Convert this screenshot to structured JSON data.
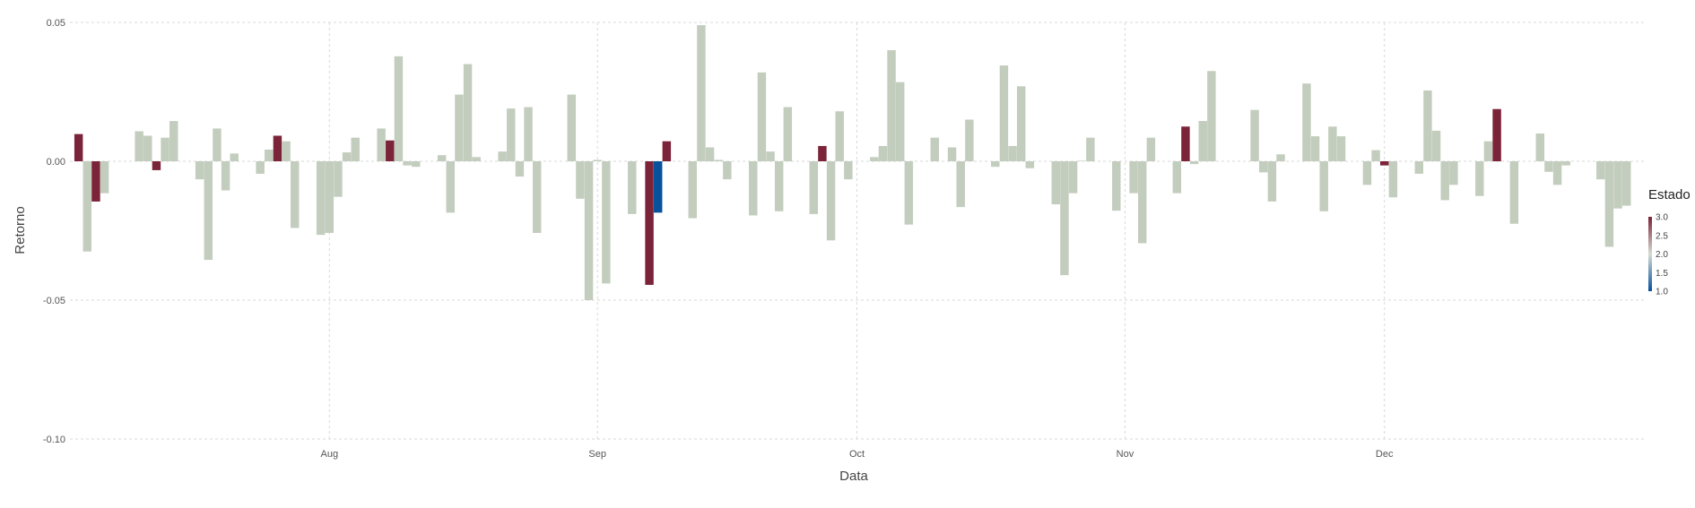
{
  "chart_data": {
    "type": "bar",
    "title": "",
    "xlabel": "Data",
    "ylabel": "Retorno",
    "ylim": [
      -0.1,
      0.05
    ],
    "x_start": "2023-07-02",
    "x_end": "2023-12-31",
    "x_ticks": [
      {
        "date": "2023-08-01",
        "label": "Aug"
      },
      {
        "date": "2023-09-01",
        "label": "Sep"
      },
      {
        "date": "2023-10-01",
        "label": "Oct"
      },
      {
        "date": "2023-11-01",
        "label": "Nov"
      },
      {
        "date": "2023-12-01",
        "label": "Dec"
      }
    ],
    "y_ticks": [
      {
        "value": 0.05,
        "label": "0.05"
      },
      {
        "value": 0.0,
        "label": "0.00"
      },
      {
        "value": -0.05,
        "label": "-0.05"
      },
      {
        "value": -0.1,
        "label": "-0.10"
      }
    ],
    "grid": true,
    "legend": {
      "title": "Estado",
      "position": "right",
      "min": 1.0,
      "max": 3.0,
      "ticks": [
        "1.0",
        "1.5",
        "2.0",
        "2.5",
        "3.0"
      ],
      "colors": {
        "low": "#08519c",
        "mid": "#d6dcd4",
        "high": "#7b2338"
      }
    },
    "series": [
      {
        "bars": [
          {
            "date": "2023-07-03",
            "value": 0.0098,
            "state": 3
          },
          {
            "date": "2023-07-04",
            "value": -0.0325,
            "state": 2
          },
          {
            "date": "2023-07-05",
            "value": -0.0145,
            "state": 3
          },
          {
            "date": "2023-07-06",
            "value": -0.0115,
            "state": 2
          },
          {
            "date": "2023-07-10",
            "value": 0.0108,
            "state": 2
          },
          {
            "date": "2023-07-11",
            "value": 0.0092,
            "state": 2
          },
          {
            "date": "2023-07-12",
            "value": -0.0032,
            "state": 3
          },
          {
            "date": "2023-07-13",
            "value": 0.0085,
            "state": 2
          },
          {
            "date": "2023-07-14",
            "value": 0.0145,
            "state": 2
          },
          {
            "date": "2023-07-17",
            "value": -0.0065,
            "state": 2
          },
          {
            "date": "2023-07-18",
            "value": -0.0355,
            "state": 2
          },
          {
            "date": "2023-07-19",
            "value": 0.0118,
            "state": 2
          },
          {
            "date": "2023-07-20",
            "value": -0.0105,
            "state": 2
          },
          {
            "date": "2023-07-21",
            "value": 0.0028,
            "state": 2
          },
          {
            "date": "2023-07-24",
            "value": -0.0045,
            "state": 2
          },
          {
            "date": "2023-07-25",
            "value": 0.0042,
            "state": 2
          },
          {
            "date": "2023-07-26",
            "value": 0.0092,
            "state": 3
          },
          {
            "date": "2023-07-27",
            "value": 0.0072,
            "state": 2
          },
          {
            "date": "2023-07-28",
            "value": -0.024,
            "state": 2
          },
          {
            "date": "2023-07-31",
            "value": -0.0265,
            "state": 2
          },
          {
            "date": "2023-08-01",
            "value": -0.0258,
            "state": 2
          },
          {
            "date": "2023-08-02",
            "value": -0.0128,
            "state": 2
          },
          {
            "date": "2023-08-03",
            "value": 0.0032,
            "state": 2
          },
          {
            "date": "2023-08-04",
            "value": 0.0085,
            "state": 2
          },
          {
            "date": "2023-08-07",
            "value": 0.0118,
            "state": 2
          },
          {
            "date": "2023-08-08",
            "value": 0.0075,
            "state": 3
          },
          {
            "date": "2023-08-09",
            "value": 0.0378,
            "state": 2
          },
          {
            "date": "2023-08-10",
            "value": -0.0015,
            "state": 2
          },
          {
            "date": "2023-08-11",
            "value": -0.002,
            "state": 2
          },
          {
            "date": "2023-08-14",
            "value": 0.0022,
            "state": 2
          },
          {
            "date": "2023-08-15",
            "value": -0.0185,
            "state": 2
          },
          {
            "date": "2023-08-16",
            "value": 0.024,
            "state": 2
          },
          {
            "date": "2023-08-17",
            "value": 0.035,
            "state": 2
          },
          {
            "date": "2023-08-18",
            "value": 0.0015,
            "state": 2
          },
          {
            "date": "2023-08-21",
            "value": 0.0035,
            "state": 2
          },
          {
            "date": "2023-08-22",
            "value": 0.019,
            "state": 2
          },
          {
            "date": "2023-08-23",
            "value": -0.0055,
            "state": 2
          },
          {
            "date": "2023-08-24",
            "value": 0.0195,
            "state": 2
          },
          {
            "date": "2023-08-25",
            "value": -0.0258,
            "state": 2
          },
          {
            "date": "2023-08-29",
            "value": 0.024,
            "state": 2
          },
          {
            "date": "2023-08-30",
            "value": -0.0135,
            "state": 2
          },
          {
            "date": "2023-08-31",
            "value": -0.05,
            "state": 2
          },
          {
            "date": "2023-09-01",
            "value": 0.0005,
            "state": 2
          },
          {
            "date": "2023-09-02",
            "value": -0.044,
            "state": 2
          },
          {
            "date": "2023-09-05",
            "value": -0.019,
            "state": 2
          },
          {
            "date": "2023-09-07",
            "value": -0.0445,
            "state": 3
          },
          {
            "date": "2023-09-08",
            "value": -0.0185,
            "state": 1
          },
          {
            "date": "2023-09-09",
            "value": 0.0072,
            "state": 3
          },
          {
            "date": "2023-09-12",
            "value": -0.0205,
            "state": 2
          },
          {
            "date": "2023-09-13",
            "value": 0.049,
            "state": 2
          },
          {
            "date": "2023-09-14",
            "value": 0.005,
            "state": 2
          },
          {
            "date": "2023-09-15",
            "value": 0.0005,
            "state": 2
          },
          {
            "date": "2023-09-16",
            "value": -0.0065,
            "state": 2
          },
          {
            "date": "2023-09-19",
            "value": -0.0195,
            "state": 2
          },
          {
            "date": "2023-09-20",
            "value": 0.032,
            "state": 2
          },
          {
            "date": "2023-09-21",
            "value": 0.0035,
            "state": 2
          },
          {
            "date": "2023-09-22",
            "value": -0.018,
            "state": 2
          },
          {
            "date": "2023-09-23",
            "value": 0.0195,
            "state": 2
          },
          {
            "date": "2023-09-26",
            "value": -0.019,
            "state": 2
          },
          {
            "date": "2023-09-27",
            "value": 0.0055,
            "state": 3
          },
          {
            "date": "2023-09-28",
            "value": -0.0285,
            "state": 2
          },
          {
            "date": "2023-09-29",
            "value": 0.018,
            "state": 2
          },
          {
            "date": "2023-09-30",
            "value": -0.0065,
            "state": 2
          },
          {
            "date": "2023-10-03",
            "value": 0.0015,
            "state": 2
          },
          {
            "date": "2023-10-04",
            "value": 0.0055,
            "state": 2
          },
          {
            "date": "2023-10-05",
            "value": 0.04,
            "state": 2
          },
          {
            "date": "2023-10-06",
            "value": 0.0285,
            "state": 2
          },
          {
            "date": "2023-10-07",
            "value": -0.0228,
            "state": 2
          },
          {
            "date": "2023-10-10",
            "value": 0.0085,
            "state": 2
          },
          {
            "date": "2023-10-12",
            "value": 0.005,
            "state": 2
          },
          {
            "date": "2023-10-13",
            "value": -0.0165,
            "state": 2
          },
          {
            "date": "2023-10-14",
            "value": 0.015,
            "state": 2
          },
          {
            "date": "2023-10-17",
            "value": -0.002,
            "state": 2
          },
          {
            "date": "2023-10-18",
            "value": 0.0345,
            "state": 2
          },
          {
            "date": "2023-10-19",
            "value": 0.0055,
            "state": 2
          },
          {
            "date": "2023-10-20",
            "value": 0.027,
            "state": 2
          },
          {
            "date": "2023-10-21",
            "value": -0.0025,
            "state": 2
          },
          {
            "date": "2023-10-24",
            "value": -0.0155,
            "state": 2
          },
          {
            "date": "2023-10-25",
            "value": -0.041,
            "state": 2
          },
          {
            "date": "2023-10-26",
            "value": -0.0115,
            "state": 2
          },
          {
            "date": "2023-10-27",
            "value": 0.0002,
            "state": 2
          },
          {
            "date": "2023-10-28",
            "value": 0.0085,
            "state": 2
          },
          {
            "date": "2023-10-31",
            "value": -0.0178,
            "state": 2
          },
          {
            "date": "2023-11-02",
            "value": -0.0115,
            "state": 2
          },
          {
            "date": "2023-11-03",
            "value": -0.0295,
            "state": 2
          },
          {
            "date": "2023-11-04",
            "value": 0.0085,
            "state": 2
          },
          {
            "date": "2023-11-07",
            "value": -0.0115,
            "state": 2
          },
          {
            "date": "2023-11-08",
            "value": 0.0125,
            "state": 3
          },
          {
            "date": "2023-11-09",
            "value": -0.001,
            "state": 2
          },
          {
            "date": "2023-11-10",
            "value": 0.0145,
            "state": 2
          },
          {
            "date": "2023-11-11",
            "value": 0.0325,
            "state": 2
          },
          {
            "date": "2023-11-16",
            "value": 0.0185,
            "state": 2
          },
          {
            "date": "2023-11-17",
            "value": -0.004,
            "state": 2
          },
          {
            "date": "2023-11-18",
            "value": -0.0145,
            "state": 2
          },
          {
            "date": "2023-11-19",
            "value": 0.0025,
            "state": 2
          },
          {
            "date": "2023-11-22",
            "value": 0.028,
            "state": 2
          },
          {
            "date": "2023-11-23",
            "value": 0.009,
            "state": 2
          },
          {
            "date": "2023-11-24",
            "value": -0.018,
            "state": 2
          },
          {
            "date": "2023-11-25",
            "value": 0.0125,
            "state": 2
          },
          {
            "date": "2023-11-26",
            "value": 0.009,
            "state": 2
          },
          {
            "date": "2023-11-29",
            "value": -0.0085,
            "state": 2
          },
          {
            "date": "2023-11-30",
            "value": 0.004,
            "state": 2
          },
          {
            "date": "2023-12-01",
            "value": -0.0015,
            "state": 3
          },
          {
            "date": "2023-12-02",
            "value": -0.013,
            "state": 2
          },
          {
            "date": "2023-12-05",
            "value": -0.0045,
            "state": 2
          },
          {
            "date": "2023-12-06",
            "value": 0.0255,
            "state": 2
          },
          {
            "date": "2023-12-07",
            "value": 0.011,
            "state": 2
          },
          {
            "date": "2023-12-08",
            "value": -0.014,
            "state": 2
          },
          {
            "date": "2023-12-09",
            "value": -0.0085,
            "state": 2
          },
          {
            "date": "2023-12-12",
            "value": -0.0125,
            "state": 2
          },
          {
            "date": "2023-12-13",
            "value": 0.0072,
            "state": 2
          },
          {
            "date": "2023-12-14",
            "value": 0.0188,
            "state": 3
          },
          {
            "date": "2023-12-16",
            "value": -0.0225,
            "state": 2
          },
          {
            "date": "2023-12-19",
            "value": 0.01,
            "state": 2
          },
          {
            "date": "2023-12-20",
            "value": -0.0038,
            "state": 2
          },
          {
            "date": "2023-12-21",
            "value": -0.0085,
            "state": 2
          },
          {
            "date": "2023-12-22",
            "value": -0.0015,
            "state": 2
          },
          {
            "date": "2023-12-26",
            "value": -0.0065,
            "state": 2
          },
          {
            "date": "2023-12-27",
            "value": -0.0308,
            "state": 2
          },
          {
            "date": "2023-12-28",
            "value": -0.017,
            "state": 2
          },
          {
            "date": "2023-12-29",
            "value": -0.016,
            "state": 2
          }
        ]
      }
    ]
  }
}
